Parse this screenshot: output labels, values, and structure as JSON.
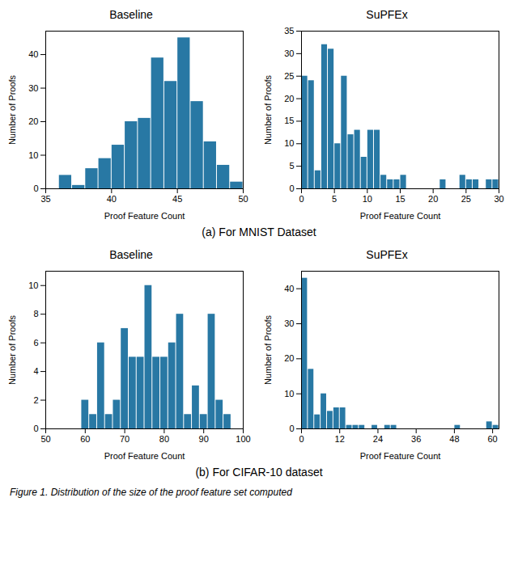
{
  "chart_data": [
    {
      "type": "histogram",
      "title": "Baseline",
      "x_label": "Proof Feature Count",
      "y_label": "Number of Proofs",
      "bins": [
        36,
        37,
        38,
        39,
        40,
        41,
        42,
        43,
        44,
        45,
        46,
        47,
        48,
        49,
        50
      ],
      "values": [
        4,
        1,
        6,
        9,
        13,
        20,
        21,
        39,
        32,
        45,
        26,
        14,
        7,
        2
      ],
      "color": "#2878a4",
      "xlim": [
        35,
        50
      ],
      "xticks": [
        35,
        40,
        45,
        50
      ],
      "ylim": [
        0,
        47
      ],
      "yticks": [
        0,
        10,
        20,
        30,
        40
      ]
    },
    {
      "type": "histogram",
      "title": "SuPFEx",
      "x_label": "Proof Feature Count",
      "y_label": "Number of Proofs",
      "bins": [
        0,
        1,
        2,
        3,
        4,
        5,
        6,
        7,
        8,
        9,
        10,
        11,
        12,
        13,
        14,
        15,
        16,
        17,
        18,
        19,
        20,
        21,
        22,
        23,
        24,
        25,
        26,
        27,
        28,
        29,
        30
      ],
      "values": [
        25,
        24,
        4,
        32,
        31,
        10,
        25,
        12,
        13,
        7,
        13,
        13,
        3,
        2,
        2,
        3,
        0,
        0,
        0,
        0,
        0,
        2,
        0,
        0,
        3,
        2,
        2,
        0,
        2,
        2
      ],
      "color": "#2878a4",
      "xlim": [
        0,
        30
      ],
      "xticks": [
        0,
        5,
        10,
        15,
        20,
        25,
        30
      ],
      "ylim": [
        0,
        35
      ],
      "yticks": [
        0,
        5,
        10,
        15,
        20,
        25,
        30,
        35
      ]
    },
    {
      "type": "histogram",
      "title": "Baseline",
      "x_label": "Proof Feature Count",
      "y_label": "Number of Proofs",
      "bins": [
        57,
        59,
        61,
        63,
        65,
        67,
        69,
        71,
        73,
        75,
        77,
        79,
        81,
        83,
        85,
        87,
        89,
        91,
        93,
        95,
        97,
        99
      ],
      "values": [
        0,
        2,
        1,
        6,
        1,
        2,
        7,
        5,
        5,
        10,
        5,
        5,
        6,
        8,
        1,
        3,
        1,
        8,
        2,
        1,
        0
      ],
      "color": "#2878a4",
      "xlim": [
        50,
        100
      ],
      "xticks": [
        50,
        60,
        70,
        80,
        90,
        100
      ],
      "ylim": [
        0,
        11
      ],
      "yticks": [
        0,
        2,
        4,
        6,
        8,
        10
      ]
    },
    {
      "type": "histogram",
      "title": "SuPFEx",
      "x_label": "Proof Feature Count",
      "y_label": "Number of Proofs",
      "bins": [
        0,
        2,
        4,
        6,
        8,
        10,
        12,
        14,
        16,
        18,
        20,
        22,
        24,
        26,
        28,
        30,
        32,
        34,
        36,
        38,
        40,
        42,
        44,
        46,
        48,
        50,
        52,
        54,
        56,
        58,
        60,
        62
      ],
      "values": [
        43,
        17,
        4,
        10,
        5,
        6,
        6,
        1,
        1,
        1,
        0,
        1,
        0,
        1,
        1,
        0,
        0,
        0,
        0,
        0,
        0,
        0,
        0,
        0,
        1,
        0,
        0,
        0,
        0,
        2,
        1
      ],
      "color": "#2878a4",
      "xlim": [
        0,
        62
      ],
      "xticks": [
        0,
        12,
        24,
        36,
        48,
        60
      ],
      "ylim": [
        0,
        45
      ],
      "yticks": [
        0,
        10,
        20,
        30,
        40
      ]
    }
  ],
  "annotations": [
    "(a) For MNIST Dataset",
    "(b) For CIFAR-10 dataset",
    "Figure 1. Distribution of the size of the proof feature set computed"
  ]
}
